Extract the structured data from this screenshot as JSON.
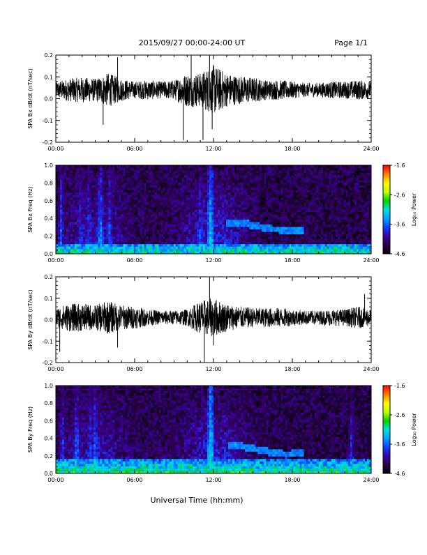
{
  "header": {
    "date_range": "2015/09/27  00:00-24:00 UT",
    "page": "Page 1/1"
  },
  "footer": {
    "xlabel": "Universal Time (hh:mm)"
  },
  "x_ticks": [
    "00:00",
    "06:00",
    "12:00",
    "18:00",
    "24:00"
  ],
  "colors": {
    "trace": "#000000",
    "colormap": [
      "#000000",
      "#2a0048",
      "#3a00a0",
      "#1040ff",
      "#00a0ff",
      "#00e0e0",
      "#00d000",
      "#c0ff00",
      "#ffff00",
      "#ff8000",
      "#ff0000"
    ]
  },
  "colorbar": {
    "label": "Log₁₀ Power",
    "tick_labels": [
      "-1.6",
      "-2.6",
      "-3.6",
      "-4.6"
    ],
    "range": [
      -4.6,
      -1.6
    ]
  },
  "chart_data": [
    {
      "type": "line",
      "ylabel": "SPA Bx dB/dt (nT/sec)",
      "xlim": [
        0,
        24
      ],
      "ylim": [
        -0.2,
        0.2
      ],
      "y_tick_labels": [
        "0.2",
        "0.1",
        "0.0",
        "-0.1",
        "-0.2"
      ],
      "baseline": 0.04,
      "envelope_hours": [
        0,
        1,
        2,
        3,
        4,
        5,
        6,
        7,
        8,
        9,
        10,
        11,
        12,
        13,
        14,
        15,
        16,
        17,
        18,
        19,
        20,
        21,
        22,
        23,
        24
      ],
      "envelope_amplitude": [
        0.03,
        0.04,
        0.045,
        0.04,
        0.06,
        0.04,
        0.03,
        0.035,
        0.03,
        0.035,
        0.06,
        0.06,
        0.09,
        0.06,
        0.05,
        0.045,
        0.035,
        0.035,
        0.03,
        0.025,
        0.025,
        0.03,
        0.03,
        0.035,
        0.03
      ],
      "extremes": [
        {
          "x": 9.7,
          "y": -0.19
        },
        {
          "x": 10.3,
          "y": 0.2
        },
        {
          "x": 11.7,
          "y": 0.2
        },
        {
          "x": 11.2,
          "y": -0.19
        },
        {
          "x": 4.7,
          "y": 0.19
        },
        {
          "x": 3.6,
          "y": -0.12
        },
        {
          "x": 11.9,
          "y": -0.14
        }
      ]
    },
    {
      "type": "heatmap",
      "ylabel": "SPA Bx Freq (Hz)",
      "xlim": [
        0,
        24
      ],
      "ylim": [
        0,
        1
      ],
      "y_tick_labels": [
        "1.0",
        "0.8",
        "0.6",
        "0.4",
        "0.2",
        "0.0"
      ],
      "value_range": [
        -4.6,
        -1.6
      ],
      "background_level": -4.3,
      "low_freq_band": {
        "freq_max": 0.12,
        "level": -3.0
      },
      "bright_columns": [
        {
          "hour": 0.4,
          "level": -3.5
        },
        {
          "hour": 1.9,
          "level": -3.6
        },
        {
          "hour": 2.5,
          "level": -3.6
        },
        {
          "hour": 3.4,
          "level": -3.3
        },
        {
          "hour": 4.1,
          "level": -3.5
        },
        {
          "hour": 11.8,
          "level": -3.1
        },
        {
          "hour": 11.0,
          "level": -3.5
        }
      ],
      "emission_band": [
        {
          "hour": 13.5,
          "freq": 0.35
        },
        {
          "hour": 14.5,
          "freq": 0.34
        },
        {
          "hour": 15.5,
          "freq": 0.31
        },
        {
          "hour": 16.5,
          "freq": 0.28
        },
        {
          "hour": 17.5,
          "freq": 0.27
        },
        {
          "hour": 18.5,
          "freq": 0.26
        }
      ]
    },
    {
      "type": "line",
      "ylabel": "SPA By dB/dt (nT/sec)",
      "xlim": [
        0,
        24
      ],
      "ylim": [
        -0.2,
        0.2
      ],
      "y_tick_labels": [
        "0.2",
        "0.1",
        "0.0",
        "-0.1",
        "-0.2"
      ],
      "baseline": 0.01,
      "envelope_hours": [
        0,
        1,
        2,
        3,
        4,
        5,
        6,
        7,
        8,
        9,
        10,
        11,
        12,
        13,
        14,
        15,
        16,
        17,
        18,
        19,
        20,
        21,
        22,
        23,
        24
      ],
      "envelope_amplitude": [
        0.035,
        0.05,
        0.05,
        0.045,
        0.06,
        0.045,
        0.04,
        0.03,
        0.025,
        0.025,
        0.03,
        0.06,
        0.07,
        0.05,
        0.04,
        0.035,
        0.035,
        0.035,
        0.03,
        0.025,
        0.025,
        0.03,
        0.03,
        0.04,
        0.03
      ],
      "extremes": [
        {
          "x": 11.3,
          "y": -0.2
        },
        {
          "x": 11.7,
          "y": 0.2
        },
        {
          "x": 0.3,
          "y": -0.15
        },
        {
          "x": 4.7,
          "y": -0.13
        },
        {
          "x": 23.5,
          "y": 0.12
        },
        {
          "x": 12.0,
          "y": -0.12
        }
      ]
    },
    {
      "type": "heatmap",
      "ylabel": "SPA By Freq (Hz)",
      "xlim": [
        0,
        24
      ],
      "ylim": [
        0,
        1
      ],
      "y_tick_labels": [
        "1.0",
        "0.8",
        "0.6",
        "0.4",
        "0.2",
        "0.0"
      ],
      "value_range": [
        -4.6,
        -1.6
      ],
      "background_level": -4.3,
      "low_freq_band": {
        "freq_max": 0.16,
        "level": -2.9
      },
      "bright_columns": [
        {
          "hour": 0.5,
          "level": -3.5
        },
        {
          "hour": 1.6,
          "level": -3.4
        },
        {
          "hour": 2.6,
          "level": -3.5
        },
        {
          "hour": 3.0,
          "level": -3.4
        },
        {
          "hour": 11.8,
          "level": -3.0
        },
        {
          "hour": 22.5,
          "level": -3.6
        }
      ],
      "emission_band": [
        {
          "hour": 13.7,
          "freq": 0.33
        },
        {
          "hour": 14.5,
          "freq": 0.3
        },
        {
          "hour": 15.5,
          "freq": 0.27
        },
        {
          "hour": 16.5,
          "freq": 0.24
        },
        {
          "hour": 17.5,
          "freq": 0.22
        },
        {
          "hour": 18.5,
          "freq": 0.23
        }
      ]
    }
  ]
}
